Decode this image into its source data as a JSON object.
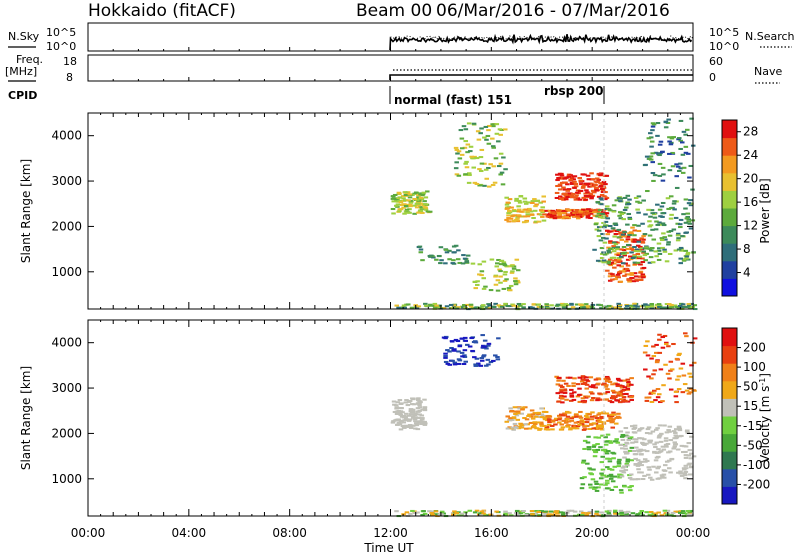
{
  "header": {
    "radar": "Hokkaido (fitACF)",
    "beam": "Beam 00",
    "daterange": "06/Mar/2016 - 07/Mar/2016"
  },
  "strips": {
    "nsky_label": "N.Sky",
    "freq_label": "Freq.",
    "freq_unit": "[MHz]",
    "cpid_label": "CPID",
    "nsearch_label": "N.Search",
    "nave_label": "Nave",
    "noise_ticks": [
      "10^5",
      "10^0"
    ],
    "freq_ticks": [
      "18",
      "8"
    ],
    "nave_ticks": [
      "60",
      "0"
    ],
    "cpid_modes": [
      "normal (fast) 151",
      "rbsp 200"
    ]
  },
  "chart_data": [
    {
      "type": "heatmap",
      "parameter": "Power",
      "ylabel": "Slant Range [km]",
      "ylim": [
        180,
        4500
      ],
      "yticks": [
        1000,
        2000,
        3000,
        4000
      ],
      "xlabel": "Time UT",
      "xticks": [
        "00:00",
        "04:00",
        "08:00",
        "12:00",
        "16:00",
        "20:00",
        "00:00"
      ],
      "colorbar_label": "Power [dB]",
      "colorbar_ticks": [
        4,
        8,
        12,
        16,
        20,
        24,
        28
      ],
      "colorscale": [
        "#1010e0",
        "#2040a0",
        "#2f6e7a",
        "#3c8a5a",
        "#5caa3c",
        "#9ed040",
        "#e8c030",
        "#f39a20",
        "#ee5a18",
        "#e01010"
      ],
      "data_window_hours": [
        12,
        24
      ],
      "grid": false
    },
    {
      "type": "heatmap",
      "parameter": "Velocity",
      "ylabel": "Slant Range [km]",
      "ylim": [
        180,
        4500
      ],
      "yticks": [
        1000,
        2000,
        3000,
        4000
      ],
      "xlabel": "Time UT",
      "xticks": [
        "00:00",
        "04:00",
        "08:00",
        "12:00",
        "16:00",
        "20:00",
        "00:00"
      ],
      "colorbar_label": "Velocity [m s",
      "colorbar_label_exp": "-1",
      "colorbar_label_close": "]",
      "colorbar_ticks": [
        200,
        100,
        50,
        15,
        -15,
        -50,
        -100,
        -200
      ],
      "colorscale": [
        "#1818c0",
        "#2850a8",
        "#2f7850",
        "#48a838",
        "#70d040",
        "#c0c0b8",
        "#f0a818",
        "#f08018",
        "#e84010",
        "#e01010"
      ],
      "ground_scatter_color": "#c0c0b8",
      "data_window_hours": [
        12,
        24
      ],
      "grid": false
    }
  ]
}
